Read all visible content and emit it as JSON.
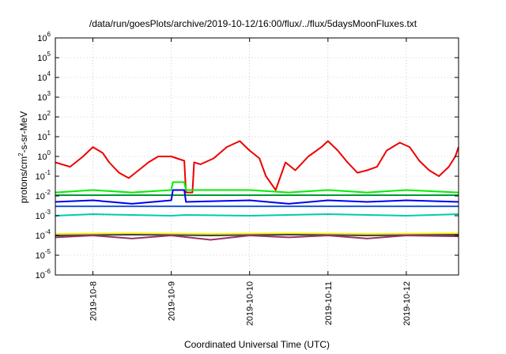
{
  "chart_data": {
    "type": "line",
    "title": "/data/run/goesPlots/archive/2019-10-12/16:00/flux/../flux/5daysMoonFluxes.txt",
    "xlabel": "Coordinated Universal Time (UTC)",
    "ylabel": "protons/cm²-s-sr-MeV",
    "yscale": "log",
    "ylim": [
      1e-06,
      1000000.0
    ],
    "xlim": [
      "2019-10-07 12:30",
      "2019-10-12 16:00"
    ],
    "y_ticks": [
      -6,
      -5,
      -4,
      -3,
      -2,
      -1,
      0,
      1,
      2,
      3,
      4,
      5,
      6
    ],
    "x_ticks": [
      {
        "label": "2019-10-8",
        "t": "2019-10-08"
      },
      {
        "label": "2019-10-9",
        "t": "2019-10-09"
      },
      {
        "label": "2019-10-10",
        "t": "2019-10-10"
      },
      {
        "label": "2019-10-11",
        "t": "2019-10-11"
      },
      {
        "label": "2019-10-12",
        "t": "2019-10-12"
      }
    ],
    "grid": true,
    "legend": "none",
    "series": [
      {
        "color": "#ee0000",
        "x": [
          "2019-10-07 12:30",
          "2019-10-07 17:00",
          "2019-10-07 21:00",
          "2019-10-08 00:00",
          "2019-10-08 03:00",
          "2019-10-08 05:00",
          "2019-10-08 08:00",
          "2019-10-08 11:00",
          "2019-10-08 14:00",
          "2019-10-08 17:00",
          "2019-10-08 20:00",
          "2019-10-09 00:00",
          "2019-10-09 04:00",
          "2019-10-09 04:30",
          "2019-10-09 06:30",
          "2019-10-09 07:00",
          "2019-10-09 09:00",
          "2019-10-09 13:00",
          "2019-10-09 17:00",
          "2019-10-09 21:00",
          "2019-10-10 00:00",
          "2019-10-10 03:00",
          "2019-10-10 05:00",
          "2019-10-10 08:00",
          "2019-10-10 11:00",
          "2019-10-10 14:00",
          "2019-10-10 18:00",
          "2019-10-10 22:00",
          "2019-10-11 00:00",
          "2019-10-11 03:00",
          "2019-10-11 06:00",
          "2019-10-11 09:00",
          "2019-10-11 12:00",
          "2019-10-11 15:00",
          "2019-10-11 18:00",
          "2019-10-11 22:00",
          "2019-10-12 01:00",
          "2019-10-12 04:00",
          "2019-10-12 07:00",
          "2019-10-12 10:00",
          "2019-10-12 13:00",
          "2019-10-12 15:00",
          "2019-10-12 16:00"
        ],
        "y": [
          0.5,
          0.3,
          1.0,
          3.0,
          1.5,
          0.5,
          0.15,
          0.08,
          0.2,
          0.5,
          1.0,
          1.0,
          0.6,
          0.015,
          0.015,
          0.5,
          0.4,
          0.8,
          3.0,
          6.0,
          2.0,
          0.8,
          0.1,
          0.02,
          0.5,
          0.2,
          1.0,
          3.0,
          6.0,
          2.0,
          0.5,
          0.15,
          0.2,
          0.3,
          2.0,
          5.0,
          3.0,
          0.6,
          0.2,
          0.1,
          0.3,
          1.0,
          3.0
        ]
      },
      {
        "color": "#00ee00",
        "x": [
          "2019-10-07 12:30",
          "2019-10-08 00:00",
          "2019-10-08 12:00",
          "2019-10-09 00:00",
          "2019-10-09 00:30",
          "2019-10-09 04:00",
          "2019-10-09 04:30",
          "2019-10-10 00:00",
          "2019-10-10 12:00",
          "2019-10-11 00:00",
          "2019-10-11 12:00",
          "2019-10-12 00:00",
          "2019-10-12 16:00"
        ],
        "y": [
          0.015,
          0.02,
          0.015,
          0.02,
          0.05,
          0.05,
          0.02,
          0.02,
          0.015,
          0.02,
          0.015,
          0.02,
          0.015
        ]
      },
      {
        "color": "#009933",
        "x": [
          "2019-10-07 12:30",
          "2019-10-08 12:00",
          "2019-10-09 12:00",
          "2019-10-10 12:00",
          "2019-10-11 12:00",
          "2019-10-12 16:00"
        ],
        "y": [
          0.011,
          0.011,
          0.011,
          0.011,
          0.011,
          0.011
        ]
      },
      {
        "color": "#0000ee",
        "x": [
          "2019-10-07 12:30",
          "2019-10-08 00:00",
          "2019-10-08 12:00",
          "2019-10-09 00:00",
          "2019-10-09 00:30",
          "2019-10-09 04:00",
          "2019-10-09 04:30",
          "2019-10-10 00:00",
          "2019-10-10 12:00",
          "2019-10-11 00:00",
          "2019-10-11 12:00",
          "2019-10-12 00:00",
          "2019-10-12 16:00"
        ],
        "y": [
          0.005,
          0.006,
          0.004,
          0.006,
          0.02,
          0.02,
          0.005,
          0.006,
          0.004,
          0.006,
          0.005,
          0.006,
          0.005
        ]
      },
      {
        "color": "#1a53d6",
        "x": [
          "2019-10-07 12:30",
          "2019-10-08 12:00",
          "2019-10-09 12:00",
          "2019-10-10 12:00",
          "2019-10-11 12:00",
          "2019-10-12 16:00"
        ],
        "y": [
          0.003,
          0.003,
          0.003,
          0.003,
          0.003,
          0.003
        ]
      },
      {
        "color": "#00ccaa",
        "x": [
          "2019-10-07 12:30",
          "2019-10-08 00:00",
          "2019-10-09 00:00",
          "2019-10-09 04:30",
          "2019-10-10 00:00",
          "2019-10-11 00:00",
          "2019-10-12 00:00",
          "2019-10-12 16:00"
        ],
        "y": [
          0.001,
          0.0012,
          0.001,
          0.0011,
          0.001,
          0.0012,
          0.001,
          0.0012
        ]
      },
      {
        "color": "#ffee00",
        "x": [
          "2019-10-07 12:30",
          "2019-10-08 12:00",
          "2019-10-09 12:00",
          "2019-10-10 12:00",
          "2019-10-11 12:00",
          "2019-10-12 16:00"
        ],
        "y": [
          0.00012,
          0.00013,
          0.00012,
          0.00013,
          0.00012,
          0.00013
        ]
      },
      {
        "color": "#444444",
        "x": [
          "2019-10-07 12:30",
          "2019-10-08 12:00",
          "2019-10-09 12:00",
          "2019-10-10 12:00",
          "2019-10-11 12:00",
          "2019-10-12 16:00"
        ],
        "y": [
          0.0001,
          0.00011,
          0.0001,
          0.00011,
          0.0001,
          0.00011
        ]
      },
      {
        "color": "#993366",
        "x": [
          "2019-10-07 12:30",
          "2019-10-08 00:00",
          "2019-10-08 12:00",
          "2019-10-09 00:00",
          "2019-10-09 12:00",
          "2019-10-10 00:00",
          "2019-10-10 12:00",
          "2019-10-11 00:00",
          "2019-10-11 12:00",
          "2019-10-12 00:00",
          "2019-10-12 16:00"
        ],
        "y": [
          8e-05,
          0.0001,
          7e-05,
          0.0001,
          6e-05,
          0.0001,
          8e-05,
          0.0001,
          7e-05,
          0.0001,
          9e-05
        ]
      }
    ]
  }
}
